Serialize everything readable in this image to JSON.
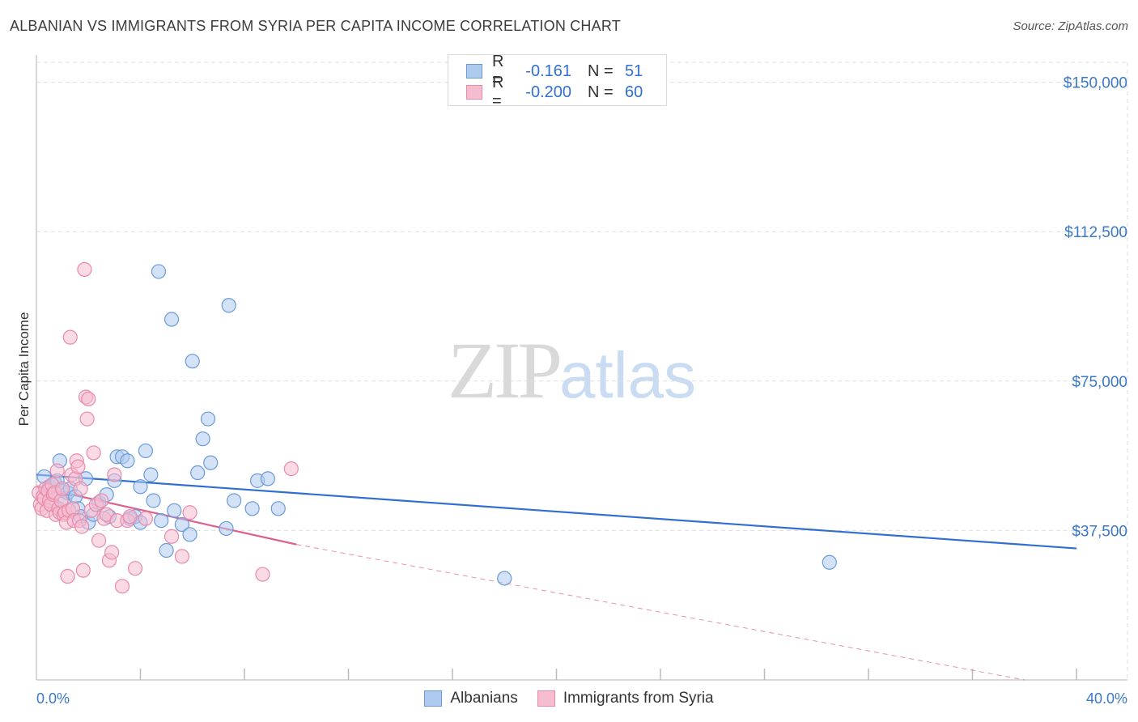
{
  "header": {
    "title": "ALBANIAN VS IMMIGRANTS FROM SYRIA PER CAPITA INCOME CORRELATION CHART",
    "source": "Source: ZipAtlas.com"
  },
  "watermark": {
    "zip": "ZIP",
    "atlas": "atlas"
  },
  "legend": {
    "rows": [
      {
        "r_label": "R =",
        "r_value": "-0.161",
        "n_label": "N =",
        "n_value": "51"
      },
      {
        "r_label": "R =",
        "r_value": "-0.200",
        "n_label": "N =",
        "n_value": "60"
      }
    ]
  },
  "bottom_legend": {
    "a": "Albanians",
    "b": "Immigrants from Syria"
  },
  "colors": {
    "blue_fill": "#aecbef",
    "blue_stroke": "#6a9bd8",
    "blue_line": "#2f6fd0",
    "pink_fill": "#f6bcd0",
    "pink_stroke": "#e88aaa",
    "pink_line": "#e0608e",
    "grid": "#dddddd"
  },
  "chart_data": {
    "type": "scatter",
    "title": "ALBANIAN VS IMMIGRANTS FROM SYRIA PER CAPITA INCOME CORRELATION CHART",
    "xlabel": "",
    "ylabel": "Per Capita Income",
    "xlim": [
      0,
      40
    ],
    "ylim": [
      0,
      155000
    ],
    "x_tick_labels": [
      "0.0%",
      "40.0%"
    ],
    "y_ticks": [
      37500,
      75000,
      112500,
      150000
    ],
    "y_tick_labels": [
      "$37,500",
      "$75,000",
      "$112,500",
      "$150,000"
    ],
    "grid": true,
    "series": [
      {
        "name": "Albanians",
        "R": -0.161,
        "N": 51,
        "trend": {
          "x": [
            0,
            40
          ],
          "y": [
            51500,
            33000
          ]
        },
        "points": [
          [
            0.3,
            51000
          ],
          [
            0.5,
            48500
          ],
          [
            0.6,
            44000
          ],
          [
            0.7,
            49500
          ],
          [
            0.8,
            50000
          ],
          [
            0.9,
            55000
          ],
          [
            1.0,
            47500
          ],
          [
            1.1,
            45500
          ],
          [
            1.2,
            47000
          ],
          [
            1.3,
            48000
          ],
          [
            1.5,
            46000
          ],
          [
            1.6,
            43000
          ],
          [
            1.7,
            41000
          ],
          [
            1.9,
            50500
          ],
          [
            2.0,
            39500
          ],
          [
            2.2,
            41500
          ],
          [
            2.4,
            44500
          ],
          [
            2.7,
            46500
          ],
          [
            2.8,
            41000
          ],
          [
            3.0,
            50000
          ],
          [
            3.1,
            56000
          ],
          [
            3.3,
            56000
          ],
          [
            3.5,
            55000
          ],
          [
            3.6,
            40500
          ],
          [
            3.8,
            41000
          ],
          [
            4.0,
            39500
          ],
          [
            4.0,
            48500
          ],
          [
            4.2,
            57500
          ],
          [
            4.4,
            51500
          ],
          [
            4.5,
            45000
          ],
          [
            4.7,
            102500
          ],
          [
            4.8,
            40000
          ],
          [
            5.0,
            32500
          ],
          [
            5.2,
            90500
          ],
          [
            5.3,
            42500
          ],
          [
            5.6,
            39000
          ],
          [
            5.9,
            36500
          ],
          [
            6.0,
            80000
          ],
          [
            6.2,
            52000
          ],
          [
            6.4,
            60500
          ],
          [
            6.6,
            65500
          ],
          [
            6.7,
            54500
          ],
          [
            7.3,
            38000
          ],
          [
            7.4,
            94000
          ],
          [
            7.6,
            45000
          ],
          [
            8.3,
            43000
          ],
          [
            8.5,
            50000
          ],
          [
            8.9,
            50500
          ],
          [
            9.3,
            43000
          ],
          [
            18.0,
            25500
          ],
          [
            30.5,
            29500
          ]
        ]
      },
      {
        "name": "Immigrants from Syria",
        "R": -0.2,
        "N": 60,
        "trend": {
          "x": [
            0,
            10
          ],
          "y": [
            48500,
            34000
          ]
        },
        "trend_dashed": {
          "x": [
            10,
            38
          ],
          "y": [
            34000,
            0
          ]
        },
        "points": [
          [
            0.1,
            47000
          ],
          [
            0.15,
            44000
          ],
          [
            0.2,
            43000
          ],
          [
            0.25,
            46000
          ],
          [
            0.3,
            45500
          ],
          [
            0.35,
            48000
          ],
          [
            0.4,
            42500
          ],
          [
            0.45,
            47500
          ],
          [
            0.5,
            45000
          ],
          [
            0.55,
            44000
          ],
          [
            0.6,
            49000
          ],
          [
            0.65,
            46500
          ],
          [
            0.7,
            47000
          ],
          [
            0.75,
            41500
          ],
          [
            0.8,
            52500
          ],
          [
            0.85,
            43000
          ],
          [
            0.9,
            42000
          ],
          [
            0.95,
            45000
          ],
          [
            1.0,
            48000
          ],
          [
            1.05,
            41500
          ],
          [
            1.1,
            42000
          ],
          [
            1.15,
            39500
          ],
          [
            1.2,
            26000
          ],
          [
            1.25,
            42500
          ],
          [
            1.3,
            86000
          ],
          [
            1.35,
            51500
          ],
          [
            1.4,
            43000
          ],
          [
            1.45,
            40000
          ],
          [
            1.5,
            50500
          ],
          [
            1.55,
            55000
          ],
          [
            1.6,
            53500
          ],
          [
            1.65,
            40000
          ],
          [
            1.7,
            48000
          ],
          [
            1.75,
            38500
          ],
          [
            1.8,
            27500
          ],
          [
            1.85,
            103000
          ],
          [
            1.9,
            71000
          ],
          [
            1.95,
            65500
          ],
          [
            2.0,
            70500
          ],
          [
            2.1,
            42500
          ],
          [
            2.2,
            57000
          ],
          [
            2.3,
            44000
          ],
          [
            2.4,
            35000
          ],
          [
            2.5,
            45000
          ],
          [
            2.6,
            40500
          ],
          [
            2.7,
            41500
          ],
          [
            2.8,
            30000
          ],
          [
            2.9,
            32000
          ],
          [
            3.0,
            51500
          ],
          [
            3.1,
            40000
          ],
          [
            3.3,
            23500
          ],
          [
            3.5,
            40000
          ],
          [
            3.6,
            41000
          ],
          [
            3.8,
            28000
          ],
          [
            4.2,
            40500
          ],
          [
            5.2,
            36000
          ],
          [
            5.6,
            31000
          ],
          [
            5.9,
            42000
          ],
          [
            8.7,
            26500
          ],
          [
            9.8,
            53000
          ]
        ]
      }
    ]
  }
}
